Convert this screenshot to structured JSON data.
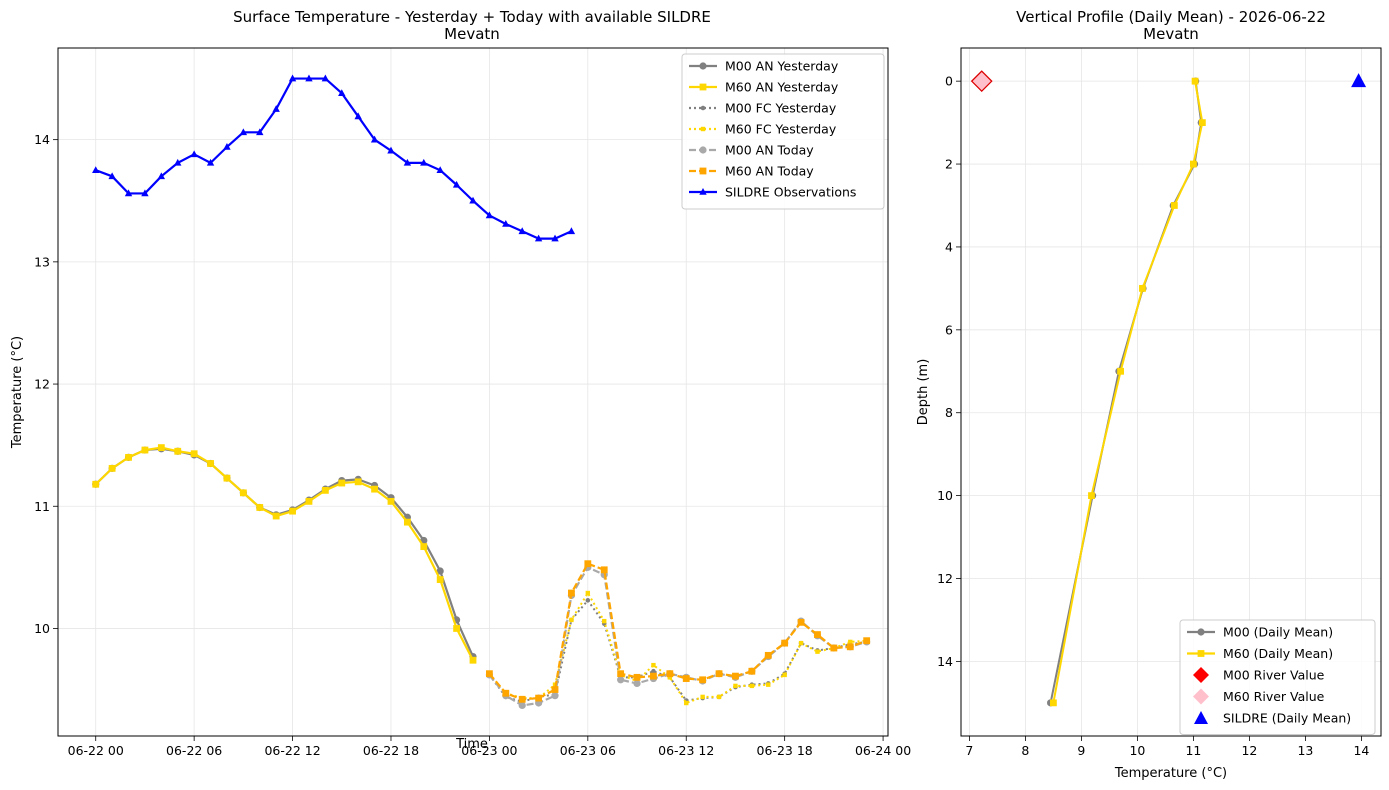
{
  "chart_data": [
    {
      "type": "line",
      "title": "Surface Temperature - Yesterday + Today with available SILDRE",
      "subtitle": "Mevatn",
      "xlabel": "Time",
      "ylabel": "Temperature (°C)",
      "xlim_hours": [
        -2.3,
        48.3
      ],
      "ylim": [
        9.12,
        14.75
      ],
      "xticks": [
        {
          "h": 0,
          "label": "06-22 00"
        },
        {
          "h": 6,
          "label": "06-22 06"
        },
        {
          "h": 12,
          "label": "06-22 12"
        },
        {
          "h": 18,
          "label": "06-22 18"
        },
        {
          "h": 24,
          "label": "06-23 00"
        },
        {
          "h": 30,
          "label": "06-23 06"
        },
        {
          "h": 36,
          "label": "06-23 12"
        },
        {
          "h": 42,
          "label": "06-23 18"
        },
        {
          "h": 48,
          "label": "06-24 00"
        }
      ],
      "yticks": [
        10,
        11,
        12,
        13,
        14
      ],
      "grid": true,
      "legend_position": "top-right",
      "series": [
        {
          "name": "M00 AN Yesterday",
          "color": "#808080",
          "dash": "solid",
          "marker": "circle",
          "x": [
            0,
            1,
            2,
            3,
            4,
            5,
            6,
            7,
            8,
            9,
            10,
            11,
            12,
            13,
            14,
            15,
            16,
            17,
            18,
            19,
            20,
            21,
            22,
            23
          ],
          "y": [
            11.18,
            11.31,
            11.4,
            11.46,
            11.47,
            11.45,
            11.42,
            11.35,
            11.23,
            11.11,
            10.99,
            10.93,
            10.97,
            11.05,
            11.14,
            11.21,
            11.22,
            11.17,
            11.07,
            10.91,
            10.72,
            10.47,
            10.07,
            9.77
          ]
        },
        {
          "name": "M60 AN Yesterday",
          "color": "#ffd700",
          "dash": "solid",
          "marker": "square",
          "x": [
            0,
            1,
            2,
            3,
            4,
            5,
            6,
            7,
            8,
            9,
            10,
            11,
            12,
            13,
            14,
            15,
            16,
            17,
            18,
            19,
            20,
            21,
            22,
            23
          ],
          "y": [
            11.18,
            11.31,
            11.4,
            11.46,
            11.48,
            11.45,
            11.43,
            11.35,
            11.23,
            11.11,
            10.99,
            10.92,
            10.96,
            11.04,
            11.13,
            11.19,
            11.2,
            11.14,
            11.04,
            10.87,
            10.67,
            10.4,
            10.0,
            9.74
          ]
        },
        {
          "name": "M00 FC Yesterday",
          "color": "#808080",
          "dash": "dotted",
          "marker": "circle-small",
          "x": [
            24,
            25,
            26,
            27,
            28,
            29,
            30,
            31,
            32,
            33,
            34,
            35,
            36,
            37,
            38,
            39,
            40,
            41,
            42,
            43,
            44,
            45,
            46,
            47
          ],
          "y": [
            9.62,
            9.44,
            9.4,
            9.44,
            9.46,
            10.07,
            10.23,
            10.04,
            9.6,
            9.6,
            9.65,
            9.6,
            9.41,
            9.43,
            9.44,
            9.52,
            9.54,
            9.55,
            9.63,
            9.88,
            9.82,
            9.84,
            9.87,
            9.89
          ]
        },
        {
          "name": "M60 FC Yesterday",
          "color": "#ffd700",
          "dash": "dotted",
          "marker": "square-small",
          "x": [
            24,
            25,
            26,
            27,
            28,
            29,
            30,
            31,
            32,
            33,
            34,
            35,
            36,
            37,
            38,
            39,
            40,
            41,
            42,
            43,
            44,
            45,
            46,
            47
          ],
          "y": [
            9.63,
            9.47,
            9.43,
            9.43,
            9.54,
            10.07,
            10.29,
            10.06,
            9.62,
            9.57,
            9.7,
            9.6,
            9.39,
            9.44,
            9.44,
            9.53,
            9.53,
            9.54,
            9.62,
            9.88,
            9.81,
            9.84,
            9.89,
            9.9
          ]
        },
        {
          "name": "M00 AN Today",
          "color": "#a9a9a9",
          "dash": "dashed",
          "marker": "circle",
          "x": [
            24,
            25,
            26,
            27,
            28,
            29,
            30,
            31,
            32,
            33,
            34,
            35,
            36,
            37,
            38,
            39,
            40,
            41,
            42,
            43,
            44,
            45,
            46,
            47
          ],
          "y": [
            9.62,
            9.45,
            9.37,
            9.39,
            9.45,
            10.27,
            10.5,
            10.44,
            9.58,
            9.55,
            9.59,
            9.63,
            9.6,
            9.57,
            9.63,
            9.6,
            9.65,
            9.77,
            9.88,
            10.06,
            9.94,
            9.84,
            9.85,
            9.89
          ]
        },
        {
          "name": "M60 AN Today",
          "color": "#ffa500",
          "dash": "dashed",
          "marker": "square",
          "x": [
            24,
            25,
            26,
            27,
            28,
            29,
            30,
            31,
            32,
            33,
            34,
            35,
            36,
            37,
            38,
            39,
            40,
            41,
            42,
            43,
            44,
            45,
            46,
            47
          ],
          "y": [
            9.63,
            9.47,
            9.42,
            9.43,
            9.5,
            10.29,
            10.53,
            10.48,
            9.63,
            9.6,
            9.61,
            9.63,
            9.59,
            9.58,
            9.63,
            9.61,
            9.65,
            9.78,
            9.88,
            10.05,
            9.95,
            9.84,
            9.85,
            9.9
          ]
        },
        {
          "name": "SILDRE Observations",
          "color": "#0000ff",
          "dash": "solid",
          "marker": "triangle",
          "x": [
            0,
            1,
            2,
            3,
            4,
            5,
            6,
            7,
            8,
            9,
            10,
            11,
            12,
            13,
            14,
            15,
            16,
            17,
            18,
            19,
            20,
            21,
            22,
            23,
            24,
            25,
            26,
            27,
            28,
            29
          ],
          "y": [
            13.75,
            13.7,
            13.56,
            13.56,
            13.7,
            13.81,
            13.88,
            13.81,
            13.94,
            14.06,
            14.06,
            14.25,
            14.5,
            14.5,
            14.5,
            14.38,
            14.19,
            14.0,
            13.91,
            13.81,
            13.81,
            13.75,
            13.63,
            13.5,
            13.38,
            13.31,
            13.25,
            13.19,
            13.19,
            13.25
          ]
        }
      ]
    },
    {
      "type": "line",
      "title": "Vertical Profile (Daily Mean) - 2026-06-22",
      "subtitle": "Mevatn",
      "xlabel": "Temperature (°C)",
      "ylabel": "Depth (m)",
      "xlim": [
        6.85,
        14.35
      ],
      "ylim": [
        15.8,
        -0.8
      ],
      "y_inverted": true,
      "xticks": [
        7,
        8,
        9,
        10,
        11,
        12,
        13,
        14
      ],
      "yticks": [
        0,
        2,
        4,
        6,
        8,
        10,
        12,
        14
      ],
      "grid": true,
      "legend_position": "bottom-right",
      "series": [
        {
          "name": "M00 (Daily Mean)",
          "color": "#808080",
          "marker": "circle",
          "temperature": [
            11.04,
            11.14,
            11.02,
            10.64,
            10.1,
            9.67,
            9.2,
            8.45
          ],
          "depth": [
            0,
            1,
            2,
            3,
            5,
            7,
            10,
            15
          ]
        },
        {
          "name": "M60 (Daily Mean)",
          "color": "#ffd700",
          "marker": "square",
          "temperature": [
            11.03,
            11.16,
            11.0,
            10.66,
            10.09,
            9.7,
            9.18,
            8.5
          ],
          "depth": [
            0,
            1,
            2,
            3,
            5,
            7,
            10,
            15
          ]
        },
        {
          "name": "M00 River Value",
          "color": "#ff0000",
          "marker": "diamond",
          "temperature": [
            7.22
          ],
          "depth": [
            0
          ]
        },
        {
          "name": "M60 River Value",
          "color": "#ffc0cb",
          "marker": "diamond",
          "temperature": [
            7.22
          ],
          "depth": [
            0
          ]
        },
        {
          "name": "SILDRE (Daily Mean)",
          "color": "#0000ff",
          "marker": "triangle",
          "temperature": [
            13.95
          ],
          "depth": [
            0
          ]
        }
      ]
    }
  ]
}
